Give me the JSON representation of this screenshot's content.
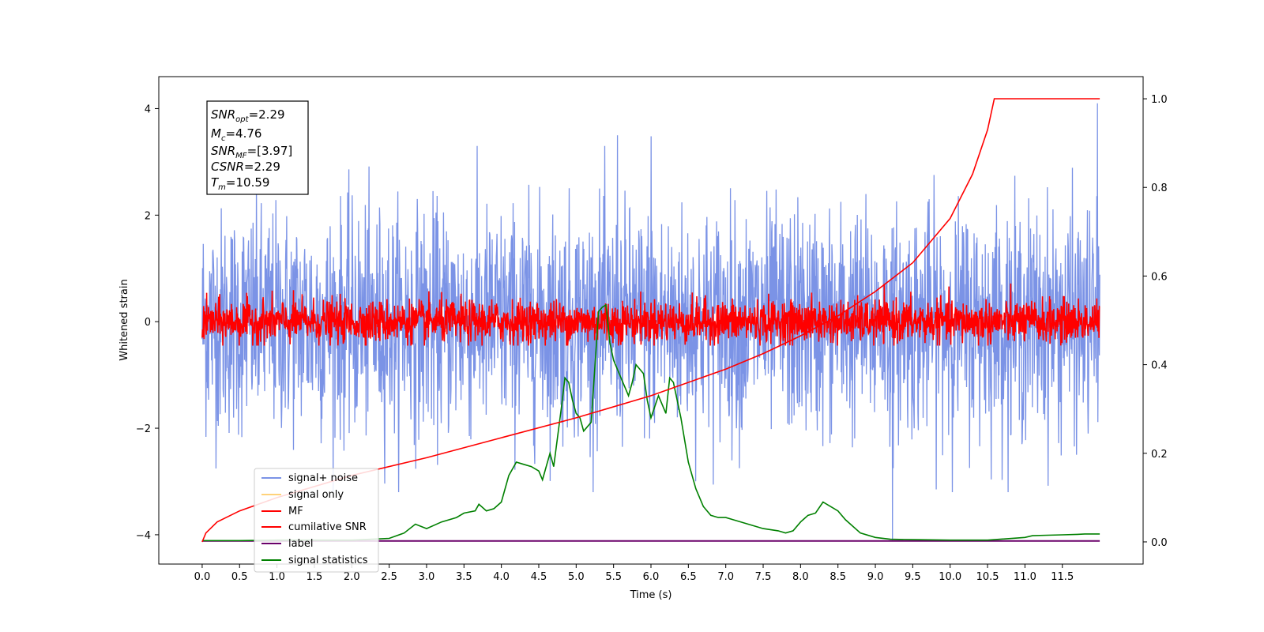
{
  "chart_data": {
    "type": "line",
    "xlabel": "Time (s)",
    "ylabel": "Whitened strain",
    "xlim": [
      -0.58,
      12.58
    ],
    "ylim": [
      -4.55,
      4.6
    ],
    "y2lim": [
      -0.05,
      1.05
    ],
    "x_ticks": [
      "0.0",
      "0.5",
      "1.0",
      "1.5",
      "2.0",
      "2.5",
      "3.0",
      "3.5",
      "4.0",
      "4.5",
      "5.0",
      "5.5",
      "6.0",
      "6.5",
      "7.0",
      "7.5",
      "8.0",
      "8.5",
      "9.0",
      "9.5",
      "10.0",
      "10.5",
      "11.0",
      "11.5"
    ],
    "x_tick_values": [
      0,
      0.5,
      1,
      1.5,
      2,
      2.5,
      3,
      3.5,
      4,
      4.5,
      5,
      5.5,
      6,
      6.5,
      7,
      7.5,
      8,
      8.5,
      9,
      9.5,
      10,
      10.5,
      11,
      11.5
    ],
    "y_ticks": [
      "−4",
      "−2",
      "0",
      "2",
      "4"
    ],
    "y_tick_values": [
      -4,
      -2,
      0,
      2,
      4
    ],
    "y2_ticks": [
      "0.0",
      "0.2",
      "0.4",
      "0.6",
      "0.8",
      "1.0"
    ],
    "y2_tick_values": [
      0,
      0.2,
      0.4,
      0.6,
      0.8,
      1.0
    ],
    "grid": false,
    "legend_position": "lower-left",
    "annotation": {
      "line1_base": "SNR",
      "line1_sub": "opt",
      "line1_value": "=2.29",
      "line2_base": "M",
      "line2_sub": "c",
      "line2_value": "=4.76",
      "line3_base": "SNR",
      "line3_sub": "MF",
      "line3_value": "=[3.97]",
      "line4_base": "CSNR",
      "line4_value": "=2.29",
      "line5_base": "T",
      "line5_sub": "m",
      "line5_value": "=10.59"
    },
    "series": [
      {
        "name": "signal+ noise",
        "color": "#7b93e6",
        "axis": "left",
        "kind": "noise",
        "x_range": [
          0,
          12.0
        ],
        "amplitude_range": [
          -3.5,
          4.2
        ],
        "spikes": [
          [
            5.55,
            3.5
          ],
          [
            6.0,
            3.48
          ],
          [
            9.23,
            -4.1
          ],
          [
            11.97,
            4.1
          ]
        ]
      },
      {
        "name": "signal only",
        "color": "#ffd27a",
        "axis": "left",
        "kind": "hidden"
      },
      {
        "name": "MF",
        "color": "#ff0000",
        "axis": "left",
        "kind": "noise",
        "x_range": [
          0,
          12.0
        ],
        "amplitude_range": [
          -0.45,
          0.85
        ]
      },
      {
        "name": "cumilative SNR",
        "color": "#ff0000",
        "axis": "right",
        "x": [
          0,
          0.05,
          0.2,
          0.5,
          1.0,
          2.0,
          3.0,
          4.0,
          5.0,
          6.0,
          7.0,
          7.5,
          8.0,
          8.5,
          9.0,
          9.5,
          10.0,
          10.3,
          10.5,
          10.59,
          11.0,
          11.5,
          12.0
        ],
        "y": [
          0,
          0.02,
          0.045,
          0.07,
          0.1,
          0.15,
          0.19,
          0.235,
          0.28,
          0.33,
          0.39,
          0.425,
          0.465,
          0.51,
          0.565,
          0.63,
          0.73,
          0.83,
          0.93,
          1.0,
          1.0,
          1.0,
          1.0
        ]
      },
      {
        "name": "label",
        "color": "#6a006a",
        "axis": "right",
        "x": [
          0,
          12.0
        ],
        "y": [
          0.002,
          0.002
        ]
      },
      {
        "name": "signal statistics",
        "color": "#008000",
        "axis": "right",
        "x": [
          0,
          0.5,
          1,
          1.5,
          2,
          2.5,
          2.7,
          2.85,
          3.0,
          3.2,
          3.4,
          3.5,
          3.65,
          3.7,
          3.8,
          3.9,
          4.0,
          4.1,
          4.2,
          4.3,
          4.4,
          4.5,
          4.55,
          4.6,
          4.65,
          4.7,
          4.8,
          4.85,
          4.9,
          4.95,
          5.0,
          5.05,
          5.1,
          5.2,
          5.3,
          5.35,
          5.4,
          5.45,
          5.5,
          5.55,
          5.6,
          5.7,
          5.75,
          5.8,
          5.9,
          5.95,
          6.0,
          6.1,
          6.2,
          6.25,
          6.3,
          6.4,
          6.5,
          6.6,
          6.7,
          6.8,
          6.9,
          7.0,
          7.1,
          7.3,
          7.5,
          7.7,
          7.8,
          7.9,
          8.0,
          8.1,
          8.2,
          8.3,
          8.4,
          8.5,
          8.6,
          8.8,
          9.0,
          9.2,
          9.5,
          10.0,
          10.5,
          11.0,
          11.1,
          11.3,
          11.5,
          11.7,
          11.8,
          12.0
        ],
        "y": [
          0.003,
          0.003,
          0.004,
          0.004,
          0.004,
          0.008,
          0.02,
          0.04,
          0.03,
          0.045,
          0.055,
          0.065,
          0.07,
          0.085,
          0.07,
          0.075,
          0.09,
          0.15,
          0.18,
          0.175,
          0.17,
          0.16,
          0.14,
          0.17,
          0.2,
          0.17,
          0.3,
          0.37,
          0.36,
          0.32,
          0.29,
          0.28,
          0.25,
          0.27,
          0.52,
          0.53,
          0.535,
          0.45,
          0.41,
          0.39,
          0.37,
          0.33,
          0.36,
          0.4,
          0.38,
          0.32,
          0.28,
          0.33,
          0.29,
          0.37,
          0.36,
          0.28,
          0.18,
          0.12,
          0.08,
          0.06,
          0.055,
          0.055,
          0.05,
          0.04,
          0.03,
          0.025,
          0.02,
          0.025,
          0.045,
          0.06,
          0.065,
          0.09,
          0.08,
          0.07,
          0.05,
          0.02,
          0.01,
          0.006,
          0.005,
          0.004,
          0.004,
          0.01,
          0.014,
          0.015,
          0.016,
          0.017,
          0.018,
          0.018
        ]
      }
    ]
  }
}
